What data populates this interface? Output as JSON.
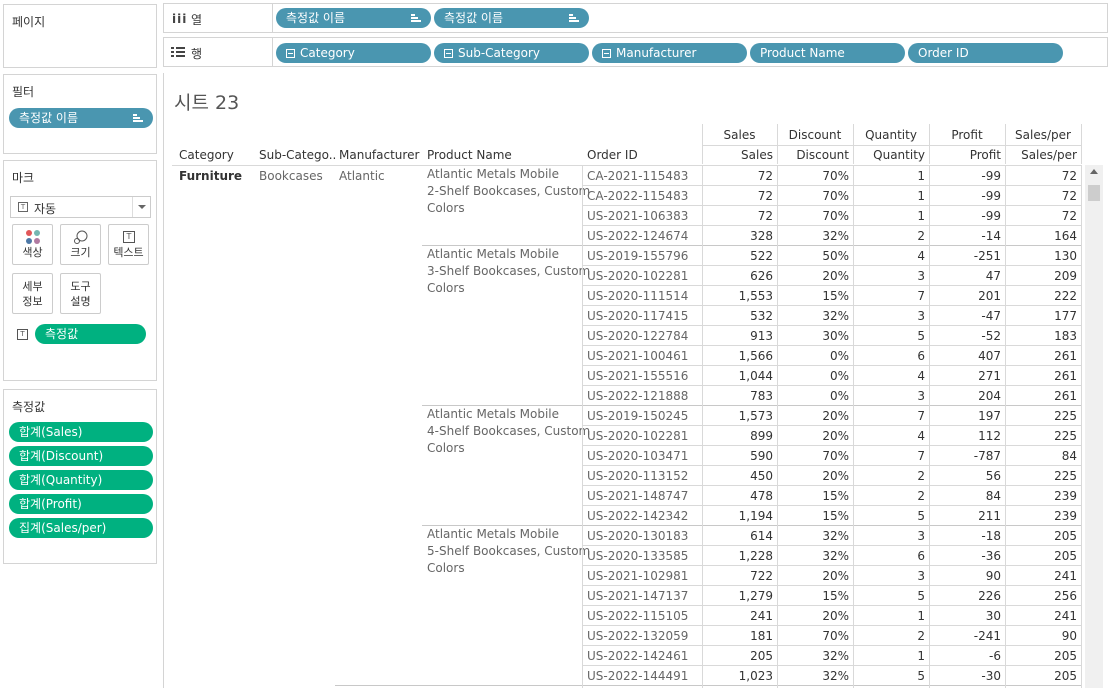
{
  "panels": {
    "pages_title": "페이지",
    "filters_title": "필터",
    "filter_pill": "측정값 이름",
    "marks_title": "마크",
    "mark_type": "자동",
    "mark_buttons": [
      "색상",
      "크기",
      "텍스트",
      "세부\n정보",
      "도구\n설명"
    ],
    "marks_pill": "측정값",
    "measures_title": "측정값",
    "measures": [
      "합계(Sales)",
      "합계(Discount)",
      "합계(Quantity)",
      "합계(Profit)",
      "집계(Sales/per)"
    ]
  },
  "shelves": {
    "columns_label": "열",
    "columns_pills": [
      "측정값 이름",
      "측정값 이름"
    ],
    "rows_label": "행",
    "rows_pills": [
      "Category",
      "Sub-Category",
      "Manufacturer",
      "Product Name",
      "Order ID"
    ]
  },
  "sheet_title": "시트 23",
  "table": {
    "measure_headers_top": [
      "Sales",
      "Discount",
      "Quantity",
      "Profit",
      "Sales/per"
    ],
    "headers": [
      "Category",
      "Sub-Catego..",
      "Manufacturer",
      "Product Name",
      "Order ID",
      "Sales",
      "Discount",
      "Quantity",
      "Profit",
      "Sales/per"
    ],
    "category": "Furniture",
    "sub_category": "Bookcases",
    "manufacturer": "Atlantic",
    "products": [
      {
        "name_lines": [
          "Atlantic Metals Mobile",
          "2-Shelf Bookcases, Custom",
          "Colors"
        ],
        "rows": [
          [
            "CA-2021-115483",
            "72",
            "70%",
            "1",
            "-99",
            "72"
          ],
          [
            "CA-2022-115483",
            "72",
            "70%",
            "1",
            "-99",
            "72"
          ],
          [
            "US-2021-106383",
            "72",
            "70%",
            "1",
            "-99",
            "72"
          ],
          [
            "US-2022-124674",
            "328",
            "32%",
            "2",
            "-14",
            "164"
          ]
        ]
      },
      {
        "name_lines": [
          "Atlantic Metals Mobile",
          "3-Shelf Bookcases, Custom",
          "Colors"
        ],
        "rows": [
          [
            "US-2019-155796",
            "522",
            "50%",
            "4",
            "-251",
            "130"
          ],
          [
            "US-2020-102281",
            "626",
            "20%",
            "3",
            "47",
            "209"
          ],
          [
            "US-2020-111514",
            "1,553",
            "15%",
            "7",
            "201",
            "222"
          ],
          [
            "US-2020-117415",
            "532",
            "32%",
            "3",
            "-47",
            "177"
          ],
          [
            "US-2020-122784",
            "913",
            "30%",
            "5",
            "-52",
            "183"
          ],
          [
            "US-2021-100461",
            "1,566",
            "0%",
            "6",
            "407",
            "261"
          ],
          [
            "US-2021-155516",
            "1,044",
            "0%",
            "4",
            "271",
            "261"
          ],
          [
            "US-2022-121888",
            "783",
            "0%",
            "3",
            "204",
            "261"
          ]
        ]
      },
      {
        "name_lines": [
          "Atlantic Metals Mobile",
          "4-Shelf Bookcases, Custom",
          "Colors"
        ],
        "rows": [
          [
            "US-2019-150245",
            "1,573",
            "20%",
            "7",
            "197",
            "225"
          ],
          [
            "US-2020-102281",
            "899",
            "20%",
            "4",
            "112",
            "225"
          ],
          [
            "US-2020-103471",
            "590",
            "70%",
            "7",
            "-787",
            "84"
          ],
          [
            "US-2020-113152",
            "450",
            "20%",
            "2",
            "56",
            "225"
          ],
          [
            "US-2021-148747",
            "478",
            "15%",
            "2",
            "84",
            "239"
          ],
          [
            "US-2022-142342",
            "1,194",
            "15%",
            "5",
            "211",
            "239"
          ]
        ]
      },
      {
        "name_lines": [
          "Atlantic Metals Mobile",
          "5-Shelf Bookcases, Custom",
          "Colors"
        ],
        "rows": [
          [
            "US-2020-130183",
            "614",
            "32%",
            "3",
            "-18",
            "205"
          ],
          [
            "US-2020-133585",
            "1,228",
            "32%",
            "6",
            "-36",
            "205"
          ],
          [
            "US-2021-102981",
            "722",
            "20%",
            "3",
            "90",
            "241"
          ],
          [
            "US-2021-147137",
            "1,279",
            "15%",
            "5",
            "226",
            "256"
          ],
          [
            "US-2022-115105",
            "241",
            "20%",
            "1",
            "30",
            "241"
          ],
          [
            "US-2022-132059",
            "181",
            "70%",
            "2",
            "-241",
            "90"
          ],
          [
            "US-2022-142461",
            "205",
            "32%",
            "1",
            "-6",
            "205"
          ],
          [
            "US-2022-144491",
            "1,023",
            "32%",
            "5",
            "-30",
            "205"
          ]
        ]
      }
    ]
  },
  "colors": {
    "dimension_pill": "#4a96b0",
    "measure_pill": "#00b180"
  }
}
